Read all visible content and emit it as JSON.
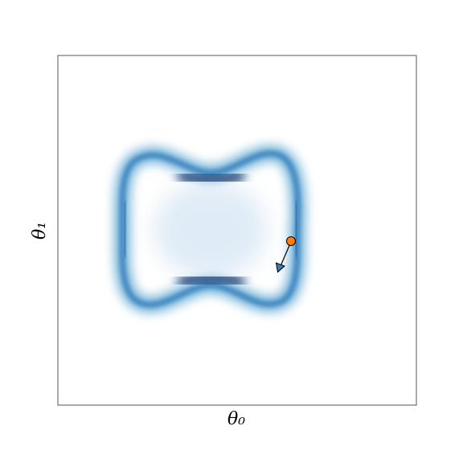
{
  "chart_data": {
    "type": "density",
    "xlabel": "θ₀",
    "ylabel": "θ₁"
  }
}
